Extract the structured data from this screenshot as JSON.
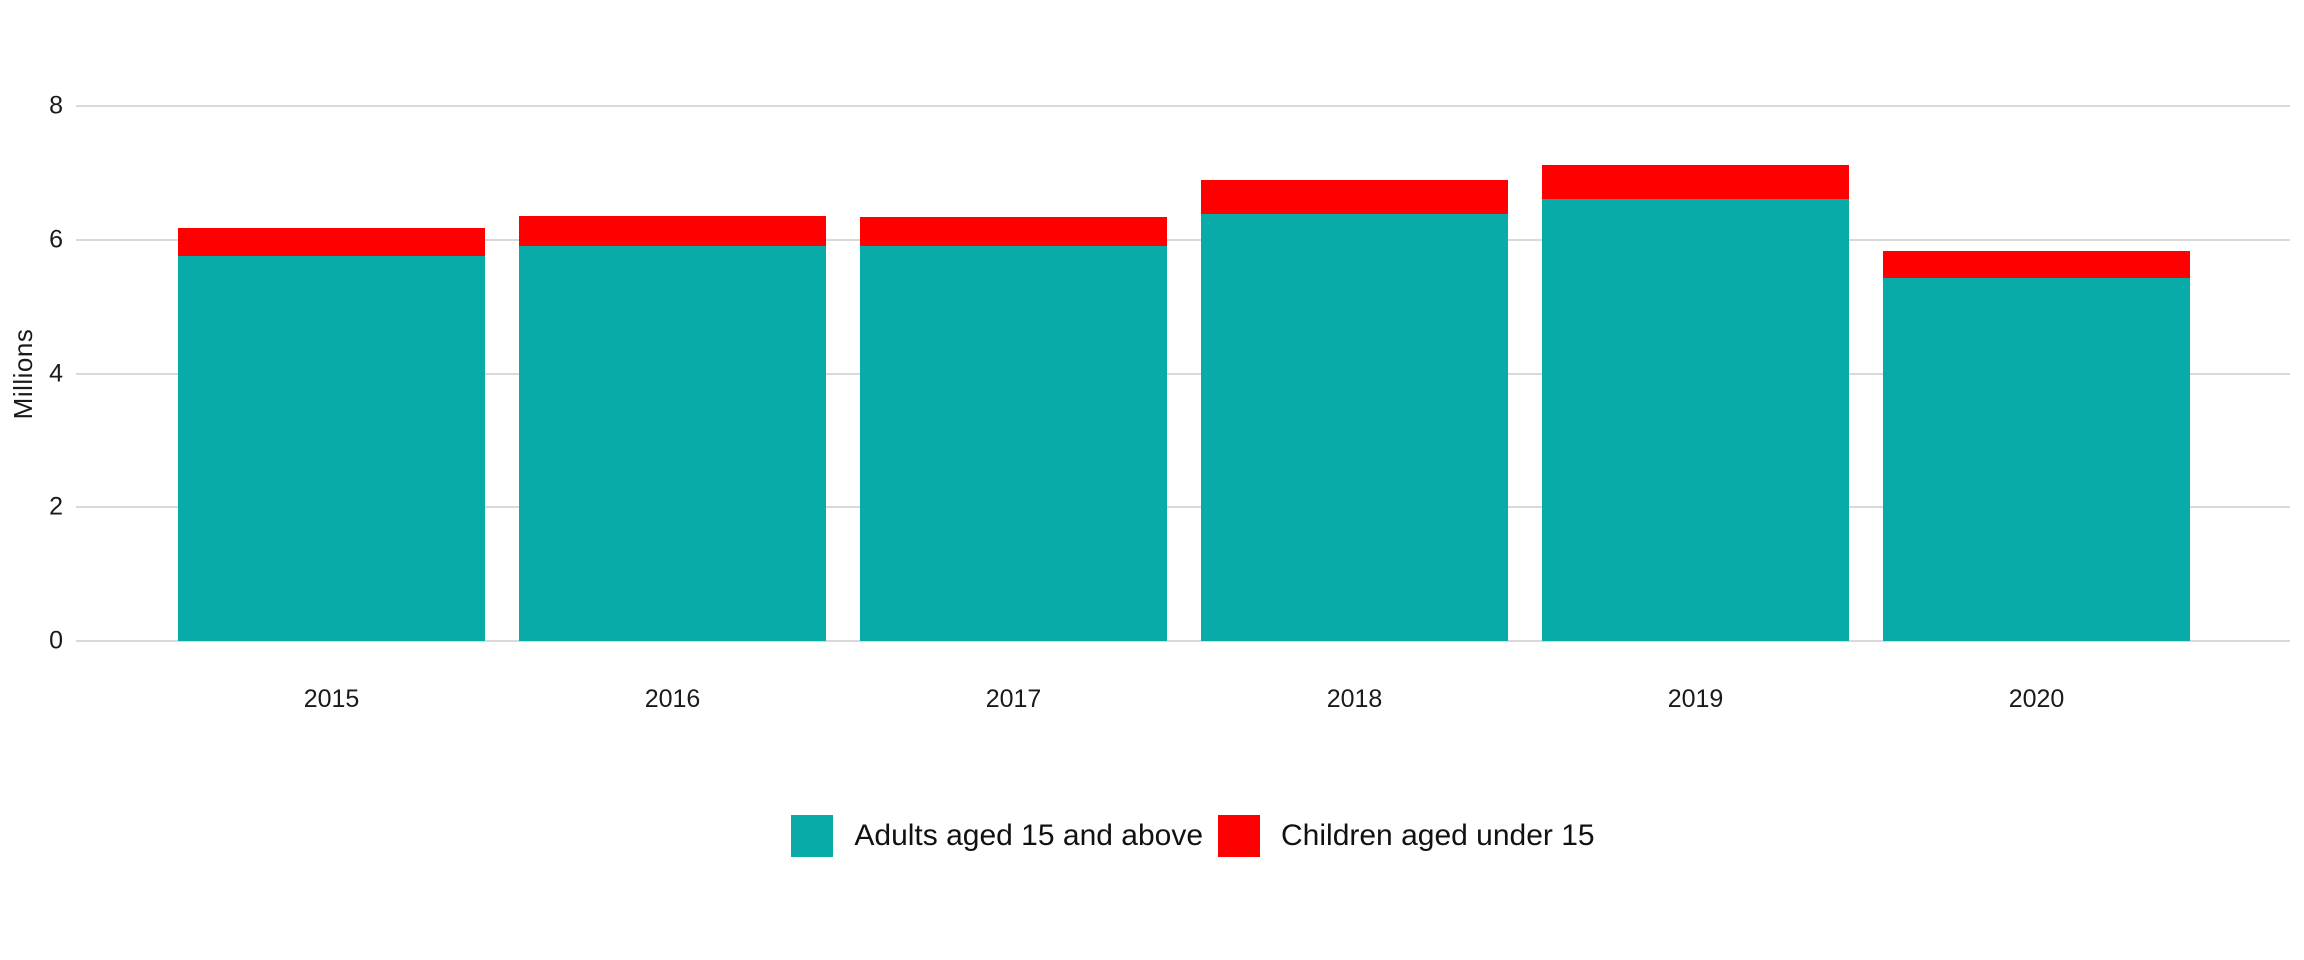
{
  "chart_data": {
    "type": "bar",
    "stacked": true,
    "title": "",
    "categories": [
      "2015",
      "2016",
      "2017",
      "2018",
      "2019",
      "2020"
    ],
    "series": [
      {
        "name": "Adults aged 15 and above",
        "color": "#09aba9",
        "values": [
          5.76,
          5.91,
          5.9,
          6.39,
          6.61,
          5.43
        ]
      },
      {
        "name": "Children aged under 15",
        "color": "#fe0000",
        "values": [
          0.41,
          0.45,
          0.44,
          0.51,
          0.51,
          0.4
        ]
      }
    ],
    "totals": [
      6.17,
      6.36,
      6.34,
      6.9,
      7.12,
      5.83
    ],
    "xlabel": "",
    "ylabel": "Millions",
    "ylim": [
      0,
      8
    ],
    "yticks": [
      0,
      2,
      4,
      6,
      8
    ],
    "grid": true,
    "legend_position": "bottom-center"
  },
  "colors": {
    "background": "#ffffff",
    "gridline": "#d9d9d9",
    "axis_text": "#1a1a1a",
    "adults": "#09aba9",
    "children": "#fe0000"
  }
}
